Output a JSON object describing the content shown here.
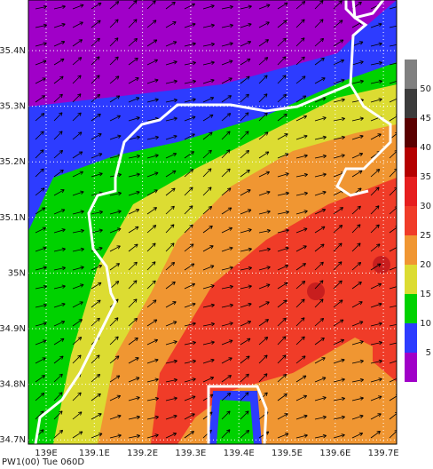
{
  "map": {
    "caption": "PW1(00) Tue 060D",
    "lat_labels": [
      "35.4N",
      "35.3N",
      "35.2N",
      "35.1N",
      "35N",
      "34.9N",
      "34.8N",
      "34.7N"
    ],
    "lon_labels": [
      "139E",
      "139.1E",
      "139.2E",
      "139.3E",
      "139.4E",
      "139.5E",
      "139.6E",
      "139.7E"
    ],
    "legend": {
      "labels": [
        "5",
        "10",
        "15",
        "20",
        "25",
        "30",
        "35",
        "40",
        "45",
        "50"
      ],
      "colors": [
        "#a000c8",
        "#2d3cff",
        "#00d200",
        "#dcdc32",
        "#f09632",
        "#f03c28",
        "#e61e1e",
        "#b40000",
        "#5a0000",
        "#3c3c3c",
        "#808080"
      ]
    }
  }
}
